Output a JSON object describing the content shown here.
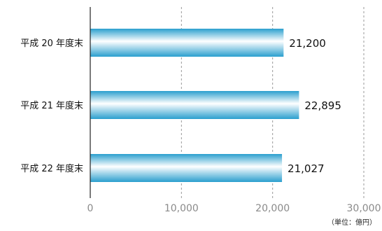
{
  "chart_data": {
    "type": "bar",
    "orientation": "horizontal",
    "title": "",
    "xlabel": "",
    "ylabel": "",
    "unit_label": "（単位：億円）",
    "categories": [
      "平成 20 年度末",
      "平成 21 年度末",
      "平成 22 年度末"
    ],
    "values": [
      21200,
      22895,
      21027
    ],
    "value_labels": [
      "21,200",
      "22,895",
      "21,027"
    ],
    "xlim": [
      0,
      30000
    ],
    "xticks": [
      0,
      10000,
      20000,
      30000
    ],
    "xtick_labels": [
      "0",
      "10,000",
      "20,000",
      "30,000"
    ],
    "grid": "vertical-dashed",
    "legend": "none",
    "colors": {
      "bar_edge": "#2a9fce",
      "bar_mid": "#ffffff",
      "grid": "#9a9a9a",
      "axis": "#222222",
      "tick_text": "#8a8a8a"
    }
  }
}
